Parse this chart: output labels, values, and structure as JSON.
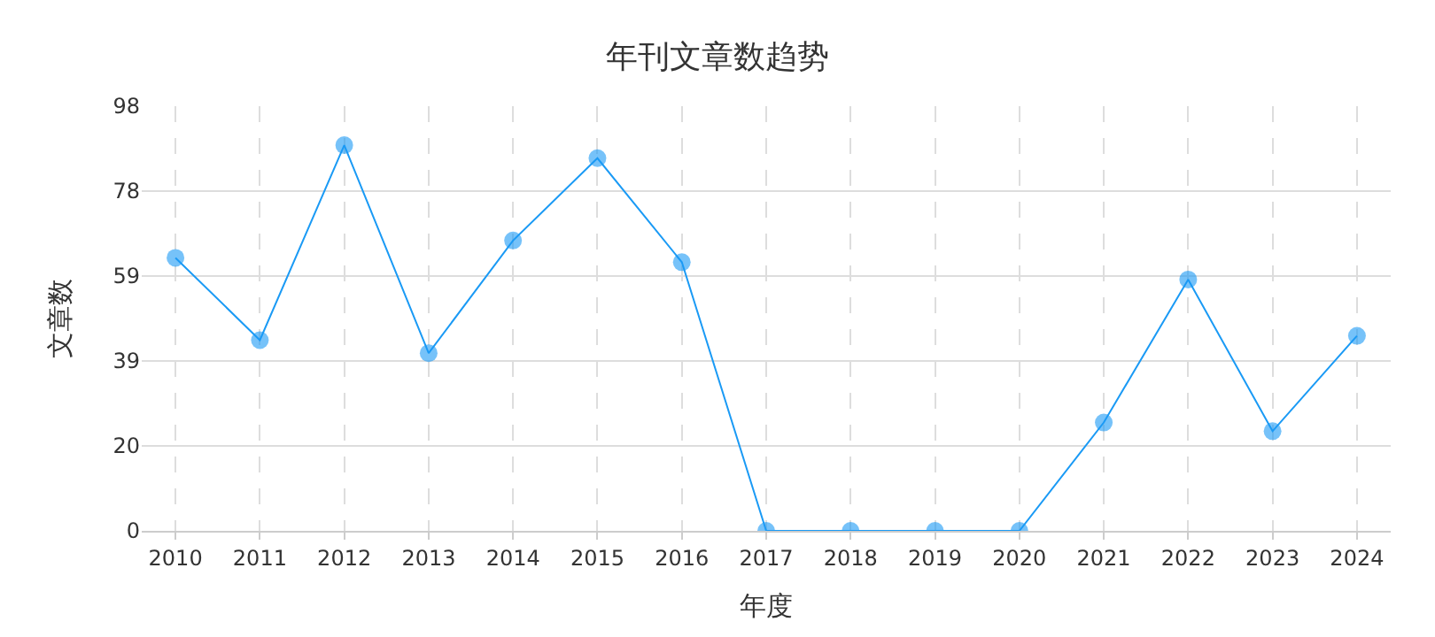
{
  "chart_data": {
    "type": "line",
    "title": "年刊文章数趋势",
    "xlabel": "年度",
    "ylabel": "文章数",
    "categories": [
      "2010",
      "2011",
      "2012",
      "2013",
      "2014",
      "2015",
      "2016",
      "2017",
      "2018",
      "2019",
      "2020",
      "2021",
      "2022",
      "2023",
      "2024"
    ],
    "series": [
      {
        "color": "#1a9af5",
        "values": [
          63,
          44,
          89,
          41,
          67,
          86,
          62,
          0,
          0,
          0,
          0,
          25,
          58,
          23,
          45
        ]
      }
    ],
    "ylim": [
      0,
      98
    ],
    "yticks": [
      0,
      {
        "value": 19.6,
        "label": "20"
      },
      {
        "value": 39.2,
        "label": "39"
      },
      {
        "value": 58.8,
        "label": "59"
      },
      {
        "value": 78.4,
        "label": "78"
      },
      98
    ],
    "grid": true,
    "marker": "circle",
    "line_style": "solid",
    "legend": false
  }
}
